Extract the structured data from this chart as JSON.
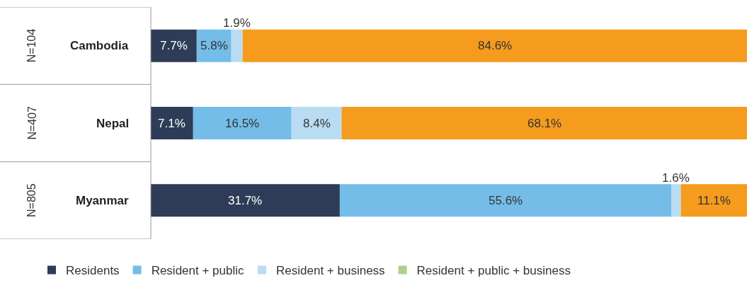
{
  "chart_data": {
    "type": "bar",
    "orientation": "horizontal",
    "stacked": true,
    "categories": [
      "Cambodia",
      "Nepal",
      "Myanmar"
    ],
    "xlim": [
      0,
      100
    ],
    "tick_labels": false,
    "legend": "bottom",
    "series": [
      {
        "name": "Residents",
        "color": "#2e3c58",
        "values": [
          7.7,
          7.1,
          31.7
        ],
        "value_labels": [
          "7.7%",
          "7.1%",
          "31.7%"
        ]
      },
      {
        "name": "Resident + public",
        "color": "#74bde8",
        "values": [
          5.8,
          16.5,
          55.6
        ],
        "value_labels": [
          "5.8%",
          "16.5%",
          "55.6%"
        ]
      },
      {
        "name": "Resident + business",
        "color": "#b9dcf2",
        "values": [
          1.9,
          8.4,
          1.6
        ],
        "value_labels": [
          "1.9%",
          "8.4%",
          "1.6%"
        ]
      },
      {
        "name": "Resident + public + business",
        "color": "#a9d18e",
        "values": [
          0,
          0,
          0
        ],
        "value_labels": [
          null,
          null,
          null
        ]
      },
      {
        "color": "#f59b1e",
        "values": [
          84.6,
          68.1,
          11.1
        ],
        "value_labels": [
          "84.6%",
          "68.1%",
          "11.1%"
        ]
      }
    ],
    "annotations": [
      "N=104",
      "N=407",
      "N=805"
    ]
  }
}
